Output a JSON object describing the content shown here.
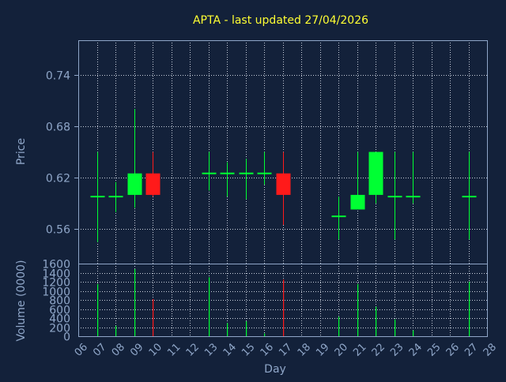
{
  "title": "APTA - last updated 27/04/2026",
  "colors": {
    "background": "#13213a",
    "plot_border": "#8fa6c8",
    "grid": "#c8d0dc",
    "title": "#ffff33",
    "axis_text": "#8fa6c8",
    "up": "#00ff33",
    "down": "#ff1a1a"
  },
  "chart_data": [
    {
      "type": "candlestick",
      "ylabel": "Price",
      "ylim": [
        0.52,
        0.78
      ],
      "yticks": [
        "0.56",
        "0.62",
        "0.68",
        "0.74"
      ],
      "xlim": [
        6,
        28
      ],
      "grid": true,
      "candles": [
        {
          "day": 7,
          "open": 0.598,
          "high": 0.65,
          "low": 0.545,
          "close": 0.598
        },
        {
          "day": 8,
          "open": 0.598,
          "high": 0.615,
          "low": 0.58,
          "close": 0.598
        },
        {
          "day": 9,
          "open": 0.6,
          "high": 0.7,
          "low": 0.585,
          "close": 0.625
        },
        {
          "day": 10,
          "open": 0.625,
          "high": 0.65,
          "low": 0.598,
          "close": 0.6
        },
        {
          "day": 13,
          "open": 0.625,
          "high": 0.65,
          "low": 0.605,
          "close": 0.625
        },
        {
          "day": 14,
          "open": 0.625,
          "high": 0.638,
          "low": 0.598,
          "close": 0.625
        },
        {
          "day": 15,
          "open": 0.625,
          "high": 0.642,
          "low": 0.595,
          "close": 0.625
        },
        {
          "day": 16,
          "open": 0.625,
          "high": 0.65,
          "low": 0.612,
          "close": 0.625
        },
        {
          "day": 17,
          "open": 0.625,
          "high": 0.65,
          "low": 0.565,
          "close": 0.6
        },
        {
          "day": 20,
          "open": 0.575,
          "high": 0.598,
          "low": 0.548,
          "close": 0.575
        },
        {
          "day": 21,
          "open": 0.583,
          "high": 0.65,
          "low": 0.583,
          "close": 0.6
        },
        {
          "day": 22,
          "open": 0.6,
          "high": 0.65,
          "low": 0.59,
          "close": 0.65
        },
        {
          "day": 23,
          "open": 0.598,
          "high": 0.65,
          "low": 0.548,
          "close": 0.598
        },
        {
          "day": 24,
          "open": 0.598,
          "high": 0.65,
          "low": 0.59,
          "close": 0.598
        },
        {
          "day": 27,
          "open": 0.598,
          "high": 0.65,
          "low": 0.548,
          "close": 0.598
        }
      ]
    },
    {
      "type": "bar",
      "ylabel": "Volume (0000)",
      "xlabel": "Day",
      "ylim": [
        0,
        1600
      ],
      "yticks": [
        "0",
        "200",
        "400",
        "600",
        "800",
        "1000",
        "1200",
        "1400",
        "1600"
      ],
      "xticks": [
        "06",
        "07",
        "08",
        "09",
        "10",
        "11",
        "12",
        "13",
        "14",
        "15",
        "16",
        "17",
        "18",
        "19",
        "20",
        "21",
        "22",
        "23",
        "24",
        "25",
        "26",
        "27",
        "28"
      ],
      "grid": true,
      "bars": [
        {
          "day": 7,
          "value": 1150,
          "direction": "up"
        },
        {
          "day": 8,
          "value": 230,
          "direction": "up"
        },
        {
          "day": 9,
          "value": 1480,
          "direction": "up"
        },
        {
          "day": 10,
          "value": 820,
          "direction": "down"
        },
        {
          "day": 13,
          "value": 1300,
          "direction": "up"
        },
        {
          "day": 14,
          "value": 290,
          "direction": "up"
        },
        {
          "day": 15,
          "value": 330,
          "direction": "up"
        },
        {
          "day": 16,
          "value": 60,
          "direction": "up"
        },
        {
          "day": 17,
          "value": 1250,
          "direction": "down"
        },
        {
          "day": 20,
          "value": 430,
          "direction": "up"
        },
        {
          "day": 21,
          "value": 1150,
          "direction": "up"
        },
        {
          "day": 22,
          "value": 650,
          "direction": "up"
        },
        {
          "day": 23,
          "value": 370,
          "direction": "up"
        },
        {
          "day": 24,
          "value": 130,
          "direction": "up"
        },
        {
          "day": 27,
          "value": 1200,
          "direction": "up"
        }
      ]
    }
  ]
}
